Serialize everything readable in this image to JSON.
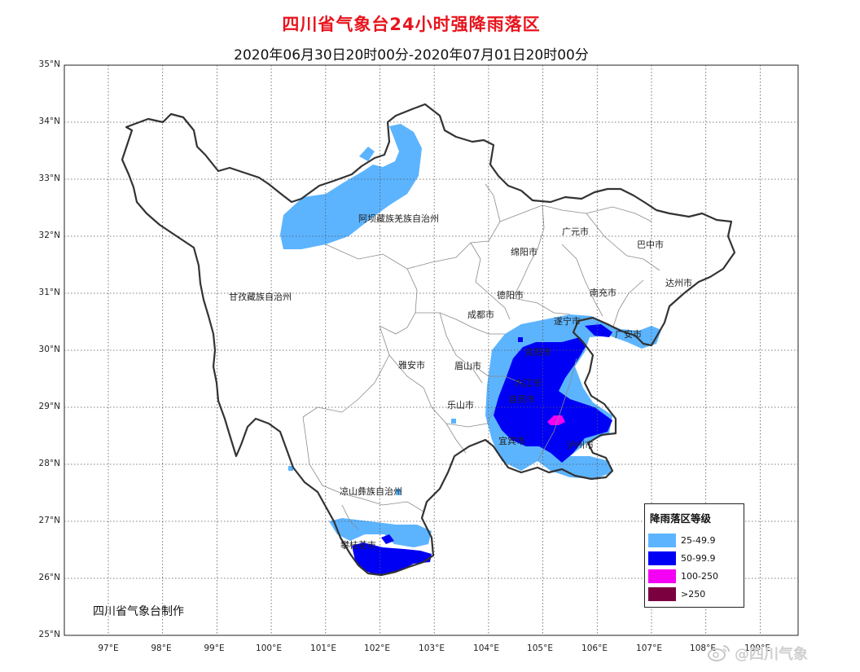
{
  "title": "四川省气象台24小时强降雨落区",
  "subtitle": "2020年06月30日20时00分-2020年07月01日20时00分",
  "latitude_labels": [
    "35°N",
    "34°N",
    "33°N",
    "32°N",
    "31°N",
    "30°N",
    "29°N",
    "28°N",
    "27°N",
    "26°N",
    "25°N"
  ],
  "longitude_labels": [
    "97°E",
    "98°E",
    "99°E",
    "100°E",
    "101°E",
    "102°E",
    "103°E",
    "104°E",
    "105°E",
    "106°E",
    "107°E",
    "108°E",
    "109°E"
  ],
  "regions": [
    {
      "id": "aba",
      "name": "阿坝藏族羌族自治州"
    },
    {
      "id": "ganzi",
      "name": "甘孜藏族自治州"
    },
    {
      "id": "guangyuan",
      "name": "广元市"
    },
    {
      "id": "bazhong",
      "name": "巴中市"
    },
    {
      "id": "mianyang",
      "name": "绵阳市"
    },
    {
      "id": "dazhou",
      "name": "达州市"
    },
    {
      "id": "deyang",
      "name": "德阳市"
    },
    {
      "id": "nanchong",
      "name": "南充市"
    },
    {
      "id": "chengdu",
      "name": "成都市"
    },
    {
      "id": "suining",
      "name": "遂宁市"
    },
    {
      "id": "guangan",
      "name": "广安市"
    },
    {
      "id": "ziyang",
      "name": "资阳市"
    },
    {
      "id": "yaan",
      "name": "雅安市"
    },
    {
      "id": "meishan",
      "name": "眉山市"
    },
    {
      "id": "neijiang",
      "name": "内江市"
    },
    {
      "id": "zigong",
      "name": "自贡市"
    },
    {
      "id": "leshan",
      "name": "乐山市"
    },
    {
      "id": "yibin",
      "name": "宜宾市"
    },
    {
      "id": "luzhou",
      "name": "泸州市"
    },
    {
      "id": "liangshan",
      "name": "凉山彝族自治州"
    },
    {
      "id": "panzhihua",
      "name": "攀枝花市"
    }
  ],
  "legend": {
    "title": "降雨落区等级",
    "items": [
      {
        "label": "25-49.9",
        "color": "#5cb4ff"
      },
      {
        "label": "50-99.9",
        "color": "#0000f5"
      },
      {
        "label": "100-250",
        "color": "#f400f4"
      },
      {
        "label": ">250",
        "color": "#7a0040"
      }
    ]
  },
  "credit": "四川省气象台制作",
  "watermark": {
    "icon": "weibo-icon",
    "text": "@四川气象"
  }
}
